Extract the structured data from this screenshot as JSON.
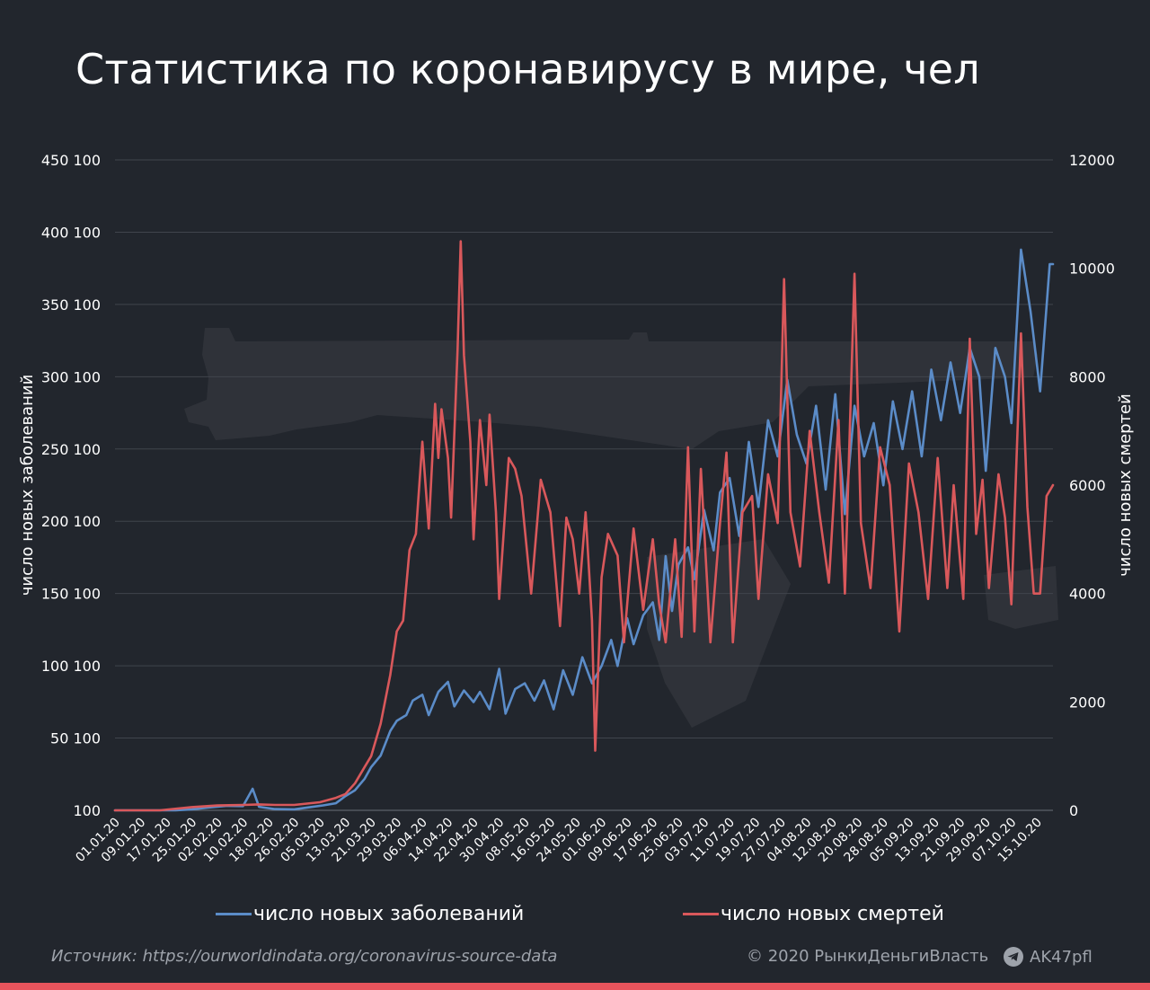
{
  "title": "Статистика по коронавирусу в мире, чел",
  "chart_data": {
    "type": "line",
    "title": "Статистика по коронавирусу в мире, чел",
    "x_axis": {
      "tick_labels": [
        "01.01.20",
        "09.01.20",
        "17.01.20",
        "25.01.20",
        "02.02.20",
        "10.02.20",
        "18.02.20",
        "26.02.20",
        "05.03.20",
        "13.03.20",
        "21.03.20",
        "29.03.20",
        "06.04.20",
        "14.04.20",
        "22.04.20",
        "30.04.20",
        "08.05.20",
        "16.05.20",
        "24.05.20",
        "01.06.20",
        "09.06.20",
        "17.06.20",
        "25.06.20",
        "03.07.20",
        "11.07.20",
        "19.07.20",
        "27.07.20",
        "04.08.20",
        "12.08.20",
        "20.08.20",
        "28.08.20",
        "05.09.20",
        "13.09.20",
        "21.09.20",
        "29.09.20",
        "07.10.20",
        "15.10.20"
      ]
    },
    "y_left": {
      "label": "число новых заболеваний",
      "ylim": [
        100,
        450100
      ],
      "tick_labels": [
        "100",
        "50 100",
        "100 100",
        "150 100",
        "200 100",
        "250 100",
        "300 100",
        "350 100",
        "400 100",
        "450 100"
      ]
    },
    "y_right": {
      "label": "число новых смертей",
      "ylim": [
        0,
        12000
      ],
      "tick_labels": [
        "0",
        "2000",
        "4000",
        "6000",
        "8000",
        "10000",
        "12000"
      ]
    },
    "grid": true,
    "legend_position": "bottom",
    "series": [
      {
        "name": "число новых заболеваний",
        "axis": "left",
        "color": "#5b8cc8",
        "points": [
          [
            "01.01.20",
            0
          ],
          [
            "10.01.20",
            0
          ],
          [
            "20.01.20",
            150
          ],
          [
            "25.01.20",
            800
          ],
          [
            "30.01.20",
            2000
          ],
          [
            "05.02.20",
            3200
          ],
          [
            "10.02.20",
            3000
          ],
          [
            "13.02.20",
            15000
          ],
          [
            "15.02.20",
            2500
          ],
          [
            "20.02.20",
            1000
          ],
          [
            "26.02.20",
            800
          ],
          [
            "01.03.20",
            2000
          ],
          [
            "06.03.20",
            3500
          ],
          [
            "10.03.20",
            5000
          ],
          [
            "13.03.20",
            10000
          ],
          [
            "16.03.20",
            14000
          ],
          [
            "19.03.20",
            22000
          ],
          [
            "21.03.20",
            30000
          ],
          [
            "24.03.20",
            38000
          ],
          [
            "27.03.20",
            55000
          ],
          [
            "29.03.20",
            62000
          ],
          [
            "01.04.20",
            66000
          ],
          [
            "03.04.20",
            76000
          ],
          [
            "06.04.20",
            80000
          ],
          [
            "08.04.20",
            66000
          ],
          [
            "11.04.20",
            82000
          ],
          [
            "14.04.20",
            89000
          ],
          [
            "16.04.20",
            72000
          ],
          [
            "19.04.20",
            83000
          ],
          [
            "22.04.20",
            75000
          ],
          [
            "24.04.20",
            82000
          ],
          [
            "27.04.20",
            70000
          ],
          [
            "30.04.20",
            98000
          ],
          [
            "02.05.20",
            67000
          ],
          [
            "05.05.20",
            84000
          ],
          [
            "08.05.20",
            88000
          ],
          [
            "11.05.20",
            76000
          ],
          [
            "14.05.20",
            90000
          ],
          [
            "17.05.20",
            70000
          ],
          [
            "20.05.20",
            97000
          ],
          [
            "23.05.20",
            80000
          ],
          [
            "26.05.20",
            106000
          ],
          [
            "29.05.20",
            88000
          ],
          [
            "01.06.20",
            100000
          ],
          [
            "04.06.20",
            118000
          ],
          [
            "06.06.20",
            100000
          ],
          [
            "09.06.20",
            133000
          ],
          [
            "11.06.20",
            115000
          ],
          [
            "14.06.20",
            135000
          ],
          [
            "17.06.20",
            144000
          ],
          [
            "19.06.20",
            118000
          ],
          [
            "21.06.20",
            176000
          ],
          [
            "23.06.20",
            138000
          ],
          [
            "25.06.20",
            170000
          ],
          [
            "28.06.20",
            182000
          ],
          [
            "30.06.20",
            160000
          ],
          [
            "03.07.20",
            208000
          ],
          [
            "06.07.20",
            180000
          ],
          [
            "08.07.20",
            220000
          ],
          [
            "11.07.20",
            230000
          ],
          [
            "14.07.20",
            190000
          ],
          [
            "17.07.20",
            255000
          ],
          [
            "20.07.20",
            210000
          ],
          [
            "23.07.20",
            270000
          ],
          [
            "26.07.20",
            245000
          ],
          [
            "29.07.20",
            298000
          ],
          [
            "01.08.20",
            260000
          ],
          [
            "04.08.20",
            240000
          ],
          [
            "07.08.20",
            280000
          ],
          [
            "10.08.20",
            222000
          ],
          [
            "13.08.20",
            288000
          ],
          [
            "16.08.20",
            205000
          ],
          [
            "19.08.20",
            280000
          ],
          [
            "22.08.20",
            245000
          ],
          [
            "25.08.20",
            268000
          ],
          [
            "28.08.20",
            225000
          ],
          [
            "31.08.20",
            283000
          ],
          [
            "03.09.20",
            250000
          ],
          [
            "06.09.20",
            290000
          ],
          [
            "09.09.20",
            245000
          ],
          [
            "12.09.20",
            305000
          ],
          [
            "15.09.20",
            270000
          ],
          [
            "18.09.20",
            310000
          ],
          [
            "21.09.20",
            275000
          ],
          [
            "24.09.20",
            320000
          ],
          [
            "27.09.20",
            300000
          ],
          [
            "29.09.20",
            235000
          ],
          [
            "02.10.20",
            320000
          ],
          [
            "05.10.20",
            300000
          ],
          [
            "07.10.20",
            268000
          ],
          [
            "10.10.20",
            388000
          ],
          [
            "13.10.20",
            345000
          ],
          [
            "16.10.20",
            290000
          ],
          [
            "19.10.20",
            378000
          ],
          [
            "20.10.20",
            378000
          ]
        ]
      },
      {
        "name": "число новых смертей",
        "axis": "right",
        "color": "#d9585b",
        "points": [
          [
            "01.01.20",
            0
          ],
          [
            "15.01.20",
            0
          ],
          [
            "25.01.20",
            60
          ],
          [
            "02.02.20",
            90
          ],
          [
            "10.02.20",
            100
          ],
          [
            "15.02.20",
            110
          ],
          [
            "20.02.20",
            100
          ],
          [
            "26.02.20",
            100
          ],
          [
            "05.03.20",
            150
          ],
          [
            "10.03.20",
            230
          ],
          [
            "13.03.20",
            300
          ],
          [
            "16.03.20",
            500
          ],
          [
            "19.03.20",
            800
          ],
          [
            "21.03.20",
            1000
          ],
          [
            "24.03.20",
            1600
          ],
          [
            "27.03.20",
            2500
          ],
          [
            "29.03.20",
            3300
          ],
          [
            "31.03.20",
            3500
          ],
          [
            "02.04.20",
            4800
          ],
          [
            "04.04.20",
            5100
          ],
          [
            "06.04.20",
            6800
          ],
          [
            "08.04.20",
            5200
          ],
          [
            "10.04.20",
            7500
          ],
          [
            "11.04.20",
            6500
          ],
          [
            "12.04.20",
            7400
          ],
          [
            "14.04.20",
            6500
          ],
          [
            "15.04.20",
            5400
          ],
          [
            "17.04.20",
            8500
          ],
          [
            "18.04.20",
            10500
          ],
          [
            "19.04.20",
            8400
          ],
          [
            "21.04.20",
            6800
          ],
          [
            "22.04.20",
            5000
          ],
          [
            "24.04.20",
            7200
          ],
          [
            "26.04.20",
            6000
          ],
          [
            "27.04.20",
            7300
          ],
          [
            "29.04.20",
            5500
          ],
          [
            "30.04.20",
            3900
          ],
          [
            "03.05.20",
            6500
          ],
          [
            "05.05.20",
            6300
          ],
          [
            "07.05.20",
            5800
          ],
          [
            "10.05.20",
            4000
          ],
          [
            "13.05.20",
            6100
          ],
          [
            "16.05.20",
            5500
          ],
          [
            "19.05.20",
            3400
          ],
          [
            "21.05.20",
            5400
          ],
          [
            "23.05.20",
            5000
          ],
          [
            "25.05.20",
            4000
          ],
          [
            "27.05.20",
            5500
          ],
          [
            "29.05.20",
            3500
          ],
          [
            "30.05.20",
            1100
          ],
          [
            "01.06.20",
            4300
          ],
          [
            "03.06.20",
            5100
          ],
          [
            "06.06.20",
            4700
          ],
          [
            "08.06.20",
            3100
          ],
          [
            "11.06.20",
            5200
          ],
          [
            "14.06.20",
            3700
          ],
          [
            "17.06.20",
            5000
          ],
          [
            "19.06.20",
            3800
          ],
          [
            "21.06.20",
            3100
          ],
          [
            "24.06.20",
            5000
          ],
          [
            "26.06.20",
            3200
          ],
          [
            "28.06.20",
            6700
          ],
          [
            "30.06.20",
            3300
          ],
          [
            "02.07.20",
            6300
          ],
          [
            "05.07.20",
            3100
          ],
          [
            "08.07.20",
            5300
          ],
          [
            "10.07.20",
            6600
          ],
          [
            "12.07.20",
            3100
          ],
          [
            "15.07.20",
            5500
          ],
          [
            "18.07.20",
            5800
          ],
          [
            "20.07.20",
            3900
          ],
          [
            "23.07.20",
            6200
          ],
          [
            "26.07.20",
            5300
          ],
          [
            "28.07.20",
            9800
          ],
          [
            "30.07.20",
            5500
          ],
          [
            "02.08.20",
            4500
          ],
          [
            "05.08.20",
            7000
          ],
          [
            "08.08.20",
            5500
          ],
          [
            "11.08.20",
            4200
          ],
          [
            "14.08.20",
            7200
          ],
          [
            "16.08.20",
            4000
          ],
          [
            "19.08.20",
            9900
          ],
          [
            "21.08.20",
            5300
          ],
          [
            "24.08.20",
            4100
          ],
          [
            "27.08.20",
            6700
          ],
          [
            "30.08.20",
            6000
          ],
          [
            "02.09.20",
            3300
          ],
          [
            "05.09.20",
            6400
          ],
          [
            "08.09.20",
            5500
          ],
          [
            "11.09.20",
            3900
          ],
          [
            "14.09.20",
            6500
          ],
          [
            "17.09.20",
            4100
          ],
          [
            "19.09.20",
            6000
          ],
          [
            "22.09.20",
            3900
          ],
          [
            "24.09.20",
            8700
          ],
          [
            "26.09.20",
            5100
          ],
          [
            "28.09.20",
            6100
          ],
          [
            "30.09.20",
            4100
          ],
          [
            "03.10.20",
            6200
          ],
          [
            "05.10.20",
            5400
          ],
          [
            "07.10.20",
            3800
          ],
          [
            "10.10.20",
            8800
          ],
          [
            "12.10.20",
            5600
          ],
          [
            "14.10.20",
            4000
          ],
          [
            "16.10.20",
            4000
          ],
          [
            "18.10.20",
            5800
          ],
          [
            "20.10.20",
            6000
          ]
        ]
      }
    ]
  },
  "legend": {
    "cases_label": "число новых заболеваний",
    "deaths_label": "число новых смертей"
  },
  "footer": {
    "source": "Источник: https://ourworldindata.org/coronavirus-source-data",
    "copyright": "© 2020  РынкиДеньгиВласть",
    "handle": "AK47pfl",
    "handle_icon": "telegram-icon"
  },
  "colors": {
    "background": "#22262d",
    "cases": "#5b8cc8",
    "deaths": "#d9585b",
    "bottom_bar": "#e8545c"
  }
}
